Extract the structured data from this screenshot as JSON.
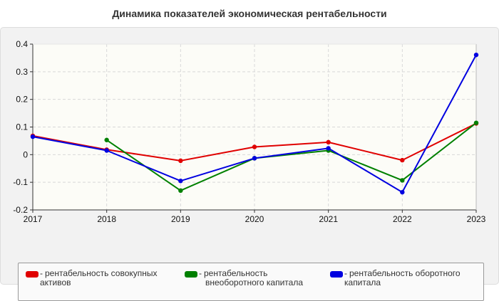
{
  "chart_data": {
    "type": "line",
    "title": "Динамика показателей экономическая рентабельности",
    "x": [
      "2017",
      "2018",
      "2019",
      "2020",
      "2021",
      "2022",
      "2023"
    ],
    "ylim": [
      -0.2,
      0.4
    ],
    "yticks": [
      "0.4",
      "0.3",
      "0.2",
      "0.1",
      "0",
      "-0.1",
      "-0.2"
    ],
    "grid": true,
    "legend_position": "bottom",
    "series": [
      {
        "name": "рентабельность совокупных активов",
        "color": "#e00000",
        "values": [
          0.068,
          0.018,
          -0.022,
          0.028,
          0.045,
          -0.02,
          0.113
        ]
      },
      {
        "name": "рентабельность внеоборотного капитала",
        "color": "#008000",
        "values": [
          null,
          0.053,
          -0.13,
          -0.013,
          0.015,
          -0.093,
          0.115
        ]
      },
      {
        "name": "рентабельность оборотного капитала",
        "color": "#0000e0",
        "values": [
          0.065,
          0.015,
          -0.095,
          -0.013,
          0.023,
          -0.136,
          0.361
        ]
      }
    ]
  },
  "legend": {
    "items": [
      {
        "dash": "-",
        "line1": "рентабельность совокупных",
        "line2": "активов",
        "color": "#e00000"
      },
      {
        "dash": "-",
        "line1": "рентабельность",
        "line2": "внеоборотного капитала",
        "color": "#008000"
      },
      {
        "dash": "-",
        "line1": "рентабельность оборотного",
        "line2": "капитала",
        "color": "#0000e0"
      }
    ]
  }
}
